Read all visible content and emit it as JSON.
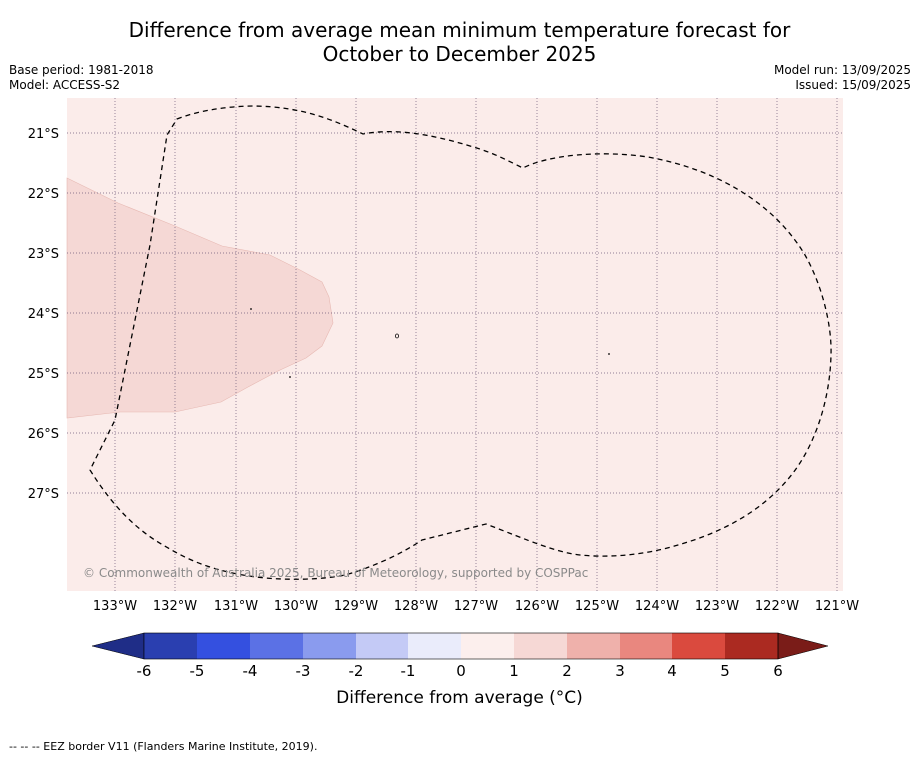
{
  "title": {
    "line1": "Difference from average mean minimum temperature forecast for",
    "line2": "October to December 2025"
  },
  "meta": {
    "base_period": "Base period: 1981-2018",
    "model": "Model: ACCESS-S2",
    "model_run": "Model run: 13/09/2025",
    "issued": "Issued: 15/09/2025"
  },
  "map": {
    "copyright": "© Commonwealth of Australia 2025, Bureau of Meteorology, supported by COSPPac",
    "lat_labels": [
      "21°S",
      "22°S",
      "23°S",
      "24°S",
      "25°S",
      "26°S",
      "27°S"
    ],
    "lon_labels": [
      "133°W",
      "132°W",
      "131°W",
      "130°W",
      "129°W",
      "128°W",
      "127°W",
      "126°W",
      "125°W",
      "124°W",
      "123°W",
      "122°W",
      "121°W"
    ],
    "background_category": "0 to 1",
    "background_color": "#fbecea",
    "warm_region_category": "1 to 2",
    "warm_region_color": "#f5d8d5",
    "eez_line_style": "dashed"
  },
  "colorbar": {
    "title": "Difference from average (°C)",
    "ticks": [
      "-6",
      "-5",
      "-4",
      "-3",
      "-2",
      "-1",
      "0",
      "1",
      "2",
      "3",
      "4",
      "5",
      "6"
    ],
    "colors": [
      "#1f2d87",
      "#2a3fb0",
      "#3450e0",
      "#5b71e5",
      "#8a9bee",
      "#c4caf6",
      "#eaecfb",
      "#fcefed",
      "#f6d8d5",
      "#efb1ab",
      "#e9877f",
      "#da4a3e",
      "#ab2a21",
      "#7a1c18"
    ]
  },
  "footer": {
    "legend": "-- -- -- EEZ border V11 (Flanders Marine Institute, 2019)."
  }
}
